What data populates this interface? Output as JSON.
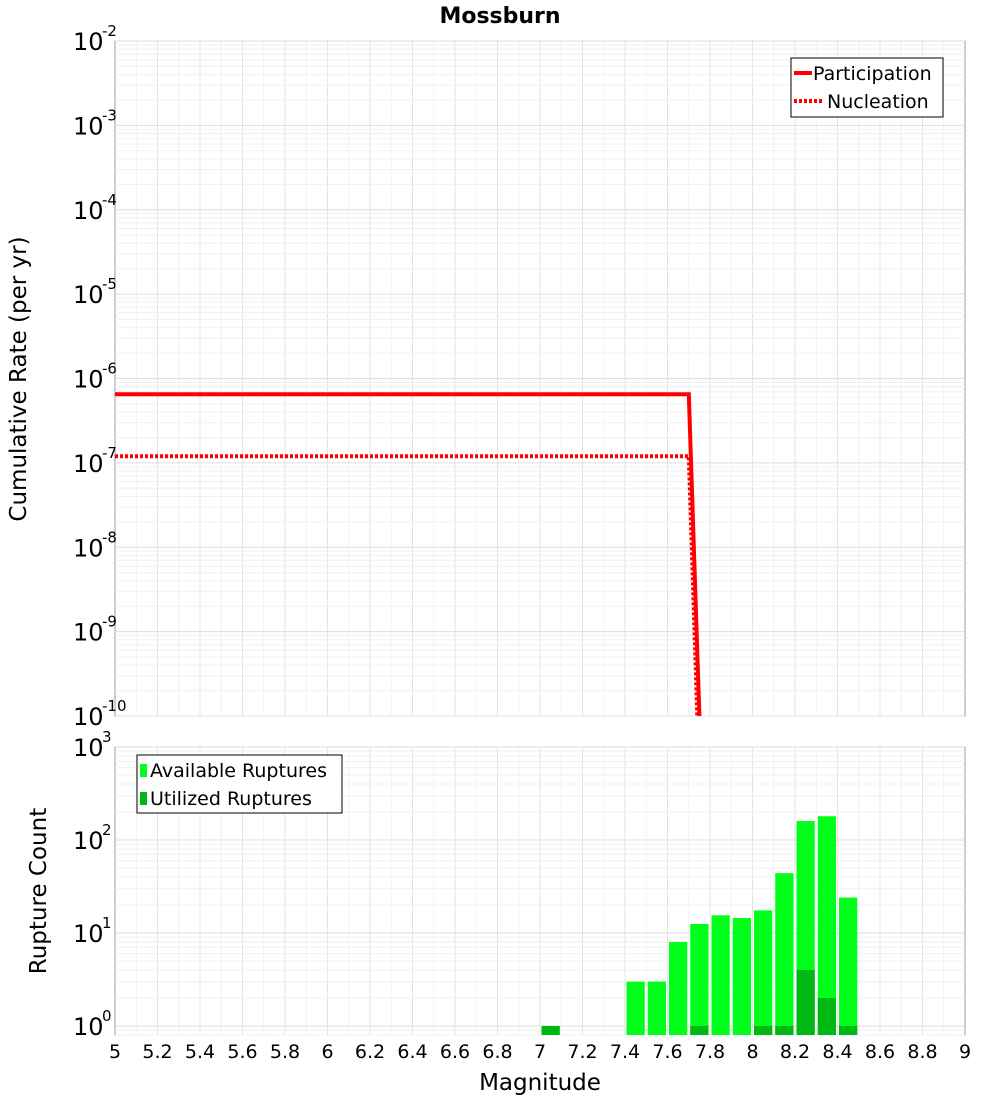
{
  "chart_data": {
    "title": "Mossburn",
    "xlabel": "Magnitude",
    "xlim": [
      5,
      9
    ],
    "x_ticks": [
      "5",
      "5.2",
      "5.4",
      "5.6",
      "5.8",
      "6",
      "6.2",
      "6.4",
      "6.6",
      "6.8",
      "7",
      "7.2",
      "7.4",
      "7.6",
      "7.8",
      "8",
      "8.2",
      "8.4",
      "8.6",
      "8.8",
      "9"
    ],
    "panels": [
      {
        "type": "line",
        "ylabel": "Cumulative Rate (per yr)",
        "yscale": "log",
        "ylim": [
          1e-10,
          0.01
        ],
        "y_ticks": [
          {
            "base": "10",
            "exp": "-10",
            "value": 1e-10
          },
          {
            "base": "10",
            "exp": "-9",
            "value": 1e-09
          },
          {
            "base": "10",
            "exp": "-8",
            "value": 1e-08
          },
          {
            "base": "10",
            "exp": "-7",
            "value": 1e-07
          },
          {
            "base": "10",
            "exp": "-6",
            "value": 1e-06
          },
          {
            "base": "10",
            "exp": "-5",
            "value": 1e-05
          },
          {
            "base": "10",
            "exp": "-4",
            "value": 0.0001
          },
          {
            "base": "10",
            "exp": "-3",
            "value": 0.001
          },
          {
            "base": "10",
            "exp": "-2",
            "value": 0.01
          }
        ],
        "legend_position": "top-right",
        "series": [
          {
            "name": "Participation",
            "style": "solid",
            "color": "#ff0000",
            "x": [
              5,
              7.7,
              7.75
            ],
            "y": [
              6.5e-07,
              6.5e-07,
              1e-10
            ]
          },
          {
            "name": "Nucleation",
            "style": "dotted",
            "color": "#ff0000",
            "x": [
              5,
              7.7,
              7.74
            ],
            "y": [
              1.2e-07,
              1.2e-07,
              1e-10
            ]
          }
        ]
      },
      {
        "type": "bar",
        "ylabel": "Rupture Count",
        "yscale": "log",
        "ylim": [
          0.8,
          1000
        ],
        "y_ticks": [
          {
            "base": "10",
            "exp": "0",
            "value": 1
          },
          {
            "base": "10",
            "exp": "1",
            "value": 10
          },
          {
            "base": "10",
            "exp": "2",
            "value": 100
          },
          {
            "base": "10",
            "exp": "3",
            "value": 1000
          }
        ],
        "legend_position": "top-left",
        "bin_width": 0.1,
        "series": [
          {
            "name": "Available Ruptures",
            "color": "#00ff1a",
            "bins": [
              7.05,
              7.45,
              7.55,
              7.65,
              7.75,
              7.85,
              7.95,
              8.05,
              8.15,
              8.25,
              8.35,
              8.45
            ],
            "values": [
              1,
              3,
              3,
              8,
              12.5,
              15.5,
              14.5,
              17.5,
              44,
              160,
              180,
              24
            ]
          },
          {
            "name": "Utilized Ruptures",
            "color": "#00b814",
            "bins": [
              7.05,
              7.75,
              8.05,
              8.15,
              8.25,
              8.35,
              8.45
            ],
            "values": [
              1,
              1,
              1,
              1,
              4,
              2,
              1
            ]
          }
        ]
      }
    ]
  }
}
